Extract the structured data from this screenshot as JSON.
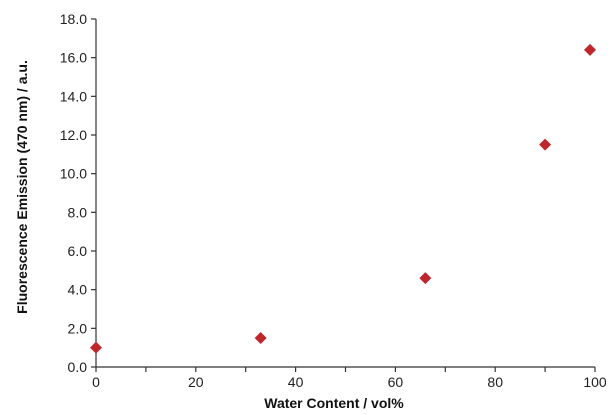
{
  "chart_data": {
    "type": "scatter",
    "xlabel": "Water Content / vol%",
    "ylabel": "Fluorescence Emission (470 nm) / a.u.",
    "xlim": [
      0,
      100
    ],
    "ylim": [
      0,
      18
    ],
    "x_ticks": [
      "0",
      "20",
      "40",
      "60",
      "80",
      "100"
    ],
    "y_ticks": [
      "0.0",
      "2.0",
      "4.0",
      "6.0",
      "8.0",
      "10.0",
      "12.0",
      "14.0",
      "16.0",
      "18.0"
    ],
    "x_tick_values": [
      0,
      20,
      40,
      60,
      80,
      100
    ],
    "y_tick_values": [
      0,
      2,
      4,
      6,
      8,
      10,
      12,
      14,
      16,
      18
    ],
    "grid": false,
    "marker": "diamond",
    "marker_color": "#c0272d",
    "series": [
      {
        "x": [
          0,
          33,
          66,
          90,
          99
        ],
        "y": [
          1.0,
          1.5,
          4.6,
          11.5,
          16.4
        ]
      }
    ]
  }
}
